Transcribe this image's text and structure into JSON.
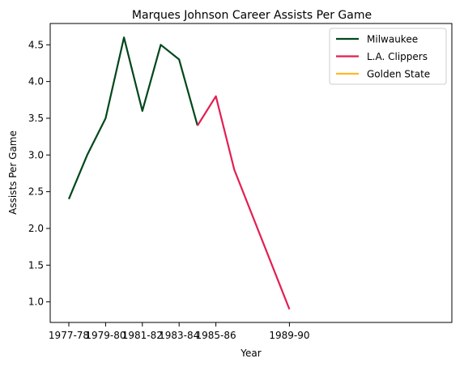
{
  "chart_data": {
    "type": "line",
    "title": "Marques Johnson Career Assists Per Game",
    "xlabel": "Year",
    "ylabel": "Assists Per Game",
    "x": [
      "1977-78",
      "1978-79",
      "1979-80",
      "1980-81",
      "1981-82",
      "1982-83",
      "1983-84",
      "1984-85",
      "1985-86",
      "1986-87",
      "1989-90"
    ],
    "xticks": [
      "1977-78",
      "1979-80",
      "1981-82",
      "1983-84",
      "1985-86",
      "1989-90"
    ],
    "yticks": [
      1.0,
      1.5,
      2.0,
      2.5,
      3.0,
      3.5,
      4.0,
      4.5
    ],
    "ylim": [
      0.72,
      4.79
    ],
    "grid": false,
    "legend_position": "top-right",
    "series": [
      {
        "name": "Milwaukee",
        "color": "#00471B",
        "points": [
          [
            "1977-78",
            2.4
          ],
          [
            "1978-79",
            3.0
          ],
          [
            "1979-80",
            3.5
          ],
          [
            "1980-81",
            4.6
          ],
          [
            "1981-82",
            3.6
          ],
          [
            "1982-83",
            4.5
          ],
          [
            "1983-84",
            4.3
          ],
          [
            "1984-85",
            3.4
          ]
        ]
      },
      {
        "name": "L.A. Clippers",
        "color": "#E31E52",
        "points": [
          [
            "1984-85",
            3.4
          ],
          [
            "1985-86",
            3.8
          ],
          [
            "1986-87",
            2.8
          ],
          [
            "1989-90",
            0.9
          ]
        ]
      },
      {
        "name": "Golden State",
        "color": "#FDB927",
        "points": []
      }
    ]
  }
}
